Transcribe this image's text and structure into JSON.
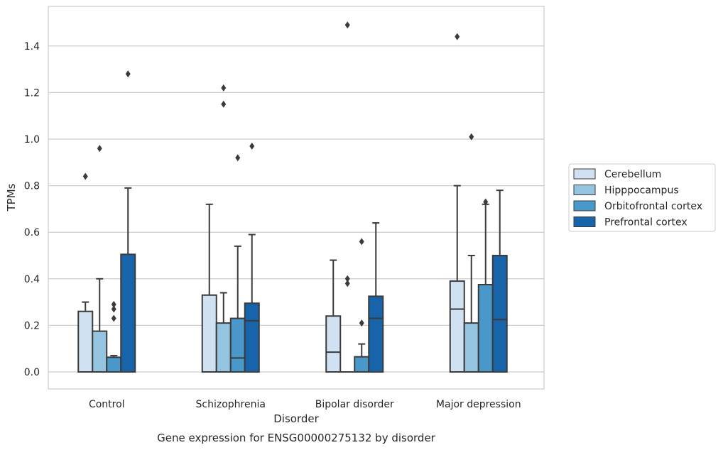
{
  "chart_data": {
    "type": "box",
    "caption": "Gene expression for ENSG00000275132 by disorder",
    "xlabel": "Disorder",
    "ylabel": "TPMs",
    "ylim": [
      -0.07,
      1.57
    ],
    "yticks": [
      0.0,
      0.2,
      0.4,
      0.6,
      0.8,
      1.0,
      1.2,
      1.4
    ],
    "ytick_labels": [
      "0.0",
      "0.2",
      "0.4",
      "0.6",
      "0.8",
      "1.0",
      "1.2",
      "1.4"
    ],
    "grid": "horizontal",
    "legend_position": "right",
    "categories": [
      "Control",
      "Schizophrenia",
      "Bipolar disorder",
      "Major depression"
    ],
    "series": [
      {
        "name": "Cerebellum",
        "color": "#d0e1f2",
        "boxes": [
          {
            "category": "Control",
            "whisker_low": 0.0,
            "q1": 0.0,
            "median": 0.0,
            "q3": 0.26,
            "whisker_high": 0.3,
            "outliers": [
              0.84
            ]
          },
          {
            "category": "Schizophrenia",
            "whisker_low": 0.0,
            "q1": 0.0,
            "median": 0.0,
            "q3": 0.33,
            "whisker_high": 0.72,
            "outliers": []
          },
          {
            "category": "Bipolar disorder",
            "whisker_low": 0.0,
            "q1": 0.0,
            "median": 0.085,
            "q3": 0.24,
            "whisker_high": 0.48,
            "outliers": []
          },
          {
            "category": "Major depression",
            "whisker_low": 0.0,
            "q1": 0.0,
            "median": 0.27,
            "q3": 0.39,
            "whisker_high": 0.8,
            "outliers": [
              1.44
            ]
          }
        ]
      },
      {
        "name": "Hipppocampus",
        "color": "#94c4df",
        "boxes": [
          {
            "category": "Control",
            "whisker_low": 0.0,
            "q1": 0.0,
            "median": 0.0,
            "q3": 0.175,
            "whisker_high": 0.4,
            "outliers": [
              0.96
            ]
          },
          {
            "category": "Schizophrenia",
            "whisker_low": 0.0,
            "q1": 0.0,
            "median": 0.0,
            "q3": 0.21,
            "whisker_high": 0.34,
            "outliers": [
              1.22,
              1.15
            ]
          },
          {
            "category": "Bipolar disorder",
            "whisker_low": 0.0,
            "q1": 0.0,
            "median": 0.0,
            "q3": 0.0,
            "whisker_high": 0.0,
            "outliers": [
              1.49,
              0.4,
              0.38
            ]
          },
          {
            "category": "Major depression",
            "whisker_low": 0.0,
            "q1": 0.0,
            "median": 0.0,
            "q3": 0.21,
            "whisker_high": 0.5,
            "outliers": [
              1.01
            ]
          }
        ]
      },
      {
        "name": "Orbitofrontal cortex",
        "color": "#4a98c9",
        "boxes": [
          {
            "category": "Control",
            "whisker_low": 0.0,
            "q1": 0.0,
            "median": 0.0,
            "q3": 0.063,
            "whisker_high": 0.07,
            "outliers": [
              0.29,
              0.27,
              0.23
            ]
          },
          {
            "category": "Schizophrenia",
            "whisker_low": 0.0,
            "q1": 0.0,
            "median": 0.06,
            "q3": 0.23,
            "whisker_high": 0.54,
            "outliers": [
              0.92
            ]
          },
          {
            "category": "Bipolar disorder",
            "whisker_low": 0.0,
            "q1": 0.0,
            "median": 0.0,
            "q3": 0.065,
            "whisker_high": 0.12,
            "outliers": [
              0.56,
              0.21
            ]
          },
          {
            "category": "Major depression",
            "whisker_low": 0.0,
            "q1": 0.0,
            "median": 0.0,
            "q3": 0.375,
            "whisker_high": 0.72,
            "outliers": [
              0.73
            ]
          }
        ]
      },
      {
        "name": "Prefrontal cortex",
        "color": "#1764ab",
        "boxes": [
          {
            "category": "Control",
            "whisker_low": 0.0,
            "q1": 0.0,
            "median": 0.0,
            "q3": 0.505,
            "whisker_high": 0.79,
            "outliers": [
              1.28
            ]
          },
          {
            "category": "Schizophrenia",
            "whisker_low": 0.0,
            "q1": 0.0,
            "median": 0.22,
            "q3": 0.295,
            "whisker_high": 0.59,
            "outliers": [
              0.97
            ]
          },
          {
            "category": "Bipolar disorder",
            "whisker_low": 0.0,
            "q1": 0.0,
            "median": 0.23,
            "q3": 0.325,
            "whisker_high": 0.64,
            "outliers": []
          },
          {
            "category": "Major depression",
            "whisker_low": 0.0,
            "q1": 0.0,
            "median": 0.225,
            "q3": 0.5,
            "whisker_high": 0.78,
            "outliers": []
          }
        ]
      }
    ]
  }
}
